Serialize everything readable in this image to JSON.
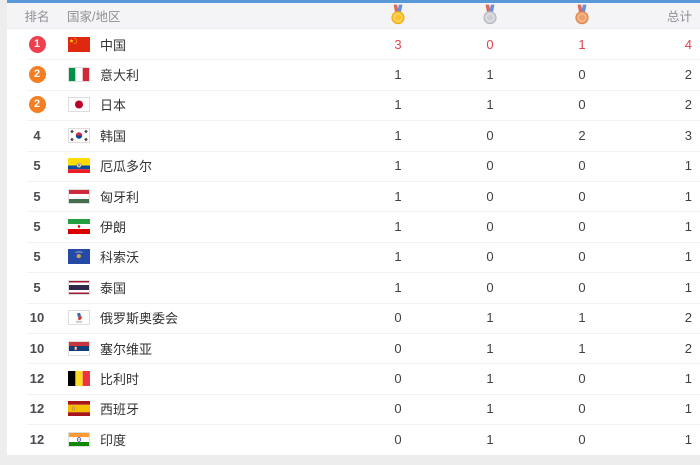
{
  "theme": {
    "top_bar_blue": "#5a99d8",
    "header_bg": "#f4f4f6",
    "highlight_red": "#e5434d",
    "badge_red": "#ee3f4d",
    "badge_orange": "#f57e23",
    "gold": "#fcc32f",
    "silver": "#cdced3",
    "bronze": "#efa06a"
  },
  "table": {
    "headers": {
      "rank": "排名",
      "country": "国家/地区",
      "gold_icon": "gold-medal-icon",
      "silver_icon": "silver-medal-icon",
      "bronze_icon": "bronze-medal-icon",
      "total": "总计"
    },
    "rows": [
      {
        "rank": "1",
        "badge": "red",
        "flag": "cn",
        "country": "中国",
        "gold": "3",
        "silver": "0",
        "bronze": "1",
        "total": "4",
        "highlight": true
      },
      {
        "rank": "2",
        "badge": "orange",
        "flag": "it",
        "country": "意大利",
        "gold": "1",
        "silver": "1",
        "bronze": "0",
        "total": "2"
      },
      {
        "rank": "2",
        "badge": "orange",
        "flag": "jp",
        "country": "日本",
        "gold": "1",
        "silver": "1",
        "bronze": "0",
        "total": "2"
      },
      {
        "rank": "4",
        "flag": "kr",
        "country": "韩国",
        "gold": "1",
        "silver": "0",
        "bronze": "2",
        "total": "3"
      },
      {
        "rank": "5",
        "flag": "ec",
        "country": "厄瓜多尔",
        "gold": "1",
        "silver": "0",
        "bronze": "0",
        "total": "1"
      },
      {
        "rank": "5",
        "flag": "hu",
        "country": "匈牙利",
        "gold": "1",
        "silver": "0",
        "bronze": "0",
        "total": "1"
      },
      {
        "rank": "5",
        "flag": "ir",
        "country": "伊朗",
        "gold": "1",
        "silver": "0",
        "bronze": "0",
        "total": "1"
      },
      {
        "rank": "5",
        "flag": "xk",
        "country": "科索沃",
        "gold": "1",
        "silver": "0",
        "bronze": "0",
        "total": "1"
      },
      {
        "rank": "5",
        "flag": "th",
        "country": "泰国",
        "gold": "1",
        "silver": "0",
        "bronze": "0",
        "total": "1"
      },
      {
        "rank": "10",
        "flag": "roc",
        "country": "俄罗斯奥委会",
        "gold": "0",
        "silver": "1",
        "bronze": "1",
        "total": "2"
      },
      {
        "rank": "10",
        "flag": "rs",
        "country": "塞尔维亚",
        "gold": "0",
        "silver": "1",
        "bronze": "1",
        "total": "2"
      },
      {
        "rank": "12",
        "flag": "be",
        "country": "比利时",
        "gold": "0",
        "silver": "1",
        "bronze": "0",
        "total": "1"
      },
      {
        "rank": "12",
        "flag": "es",
        "country": "西班牙",
        "gold": "0",
        "silver": "1",
        "bronze": "0",
        "total": "1"
      },
      {
        "rank": "12",
        "flag": "in",
        "country": "印度",
        "gold": "0",
        "silver": "1",
        "bronze": "0",
        "total": "1"
      }
    ]
  }
}
